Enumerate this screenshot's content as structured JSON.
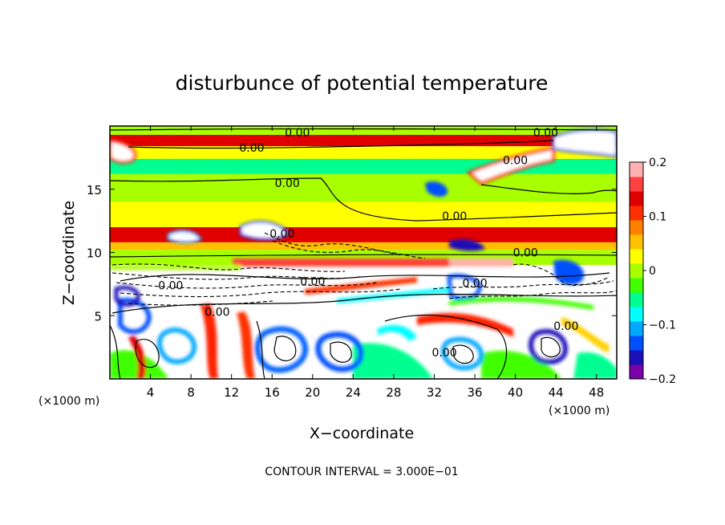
{
  "chart_data": {
    "type": "heatmap",
    "title": "disturbunce of potential temperature",
    "xlabel": "X−coordinate",
    "ylabel": "Z−coordinate",
    "x_unit_left": "(×1000 m)",
    "x_unit_right": "(×1000 m)",
    "xlim": [
      0,
      50
    ],
    "ylim": [
      0,
      20
    ],
    "x_ticks": [
      "4",
      "8",
      "12",
      "16",
      "20",
      "24",
      "28",
      "32",
      "36",
      "40",
      "44",
      "48"
    ],
    "x_tick_values": [
      4,
      8,
      12,
      16,
      20,
      24,
      28,
      32,
      36,
      40,
      44,
      48
    ],
    "y_ticks": [
      "5",
      "10",
      "15"
    ],
    "y_tick_values": [
      5,
      10,
      15
    ],
    "colorbar": {
      "range": [
        -0.2,
        0.2
      ],
      "tick_labels": [
        "0.2",
        "0.1",
        "0",
        "−0.1",
        "−0.2"
      ],
      "tick_values": [
        0.2,
        0.1,
        0,
        -0.1,
        -0.2
      ],
      "colors": [
        "#7a00a8",
        "#1a10b8",
        "#0050ff",
        "#00a8ff",
        "#00ffff",
        "#00ff90",
        "#40ff00",
        "#a8ff00",
        "#ffff00",
        "#ffc000",
        "#ff8000",
        "#ff3000",
        "#e00000",
        "#ff4040",
        "#ffb0b0"
      ]
    },
    "bands": [
      {
        "z": [
          19.3,
          20.0
        ],
        "value": 0.0
      },
      {
        "z": [
          18.4,
          19.3
        ],
        "value": 0.13
      },
      {
        "z": [
          17.4,
          18.4
        ],
        "value": 0.02
      },
      {
        "z": [
          16.2,
          17.4
        ],
        "value": -0.05
      },
      {
        "z": [
          14.0,
          16.2
        ],
        "value": 0.0
      },
      {
        "z": [
          12.0,
          14.0
        ],
        "value": 0.03
      },
      {
        "z": [
          10.8,
          12.0
        ],
        "value": 0.14
      },
      {
        "z": [
          10.2,
          10.8
        ],
        "value": 0.05
      },
      {
        "z": [
          0.0,
          10.2
        ],
        "value": 0.0
      }
    ],
    "contour_labels": [
      {
        "text": "0.00",
        "x": 18.5,
        "z": 19.5
      },
      {
        "text": "0.00",
        "x": 14.0,
        "z": 18.3
      },
      {
        "text": "0.00",
        "x": 17.5,
        "z": 15.5
      },
      {
        "text": "0.00",
        "x": 43.0,
        "z": 19.5
      },
      {
        "text": "0.00",
        "x": 40.0,
        "z": 17.3
      },
      {
        "text": "0.00",
        "x": 34.0,
        "z": 12.9
      },
      {
        "text": "0.00",
        "x": 17.0,
        "z": 11.5
      },
      {
        "text": "0.00",
        "x": 41.0,
        "z": 10.0
      },
      {
        "text": "0.00",
        "x": 6.0,
        "z": 7.4
      },
      {
        "text": "0.00",
        "x": 20.0,
        "z": 7.7
      },
      {
        "text": "0.00",
        "x": 36.0,
        "z": 7.6
      },
      {
        "text": "0.00",
        "x": 10.6,
        "z": 5.3
      },
      {
        "text": "0.00",
        "x": 33.0,
        "z": 2.1
      },
      {
        "text": "0.00",
        "x": 45.0,
        "z": 4.2
      }
    ],
    "contour_interval_text": "CONTOUR INTERVAL = 3.000E−01"
  }
}
